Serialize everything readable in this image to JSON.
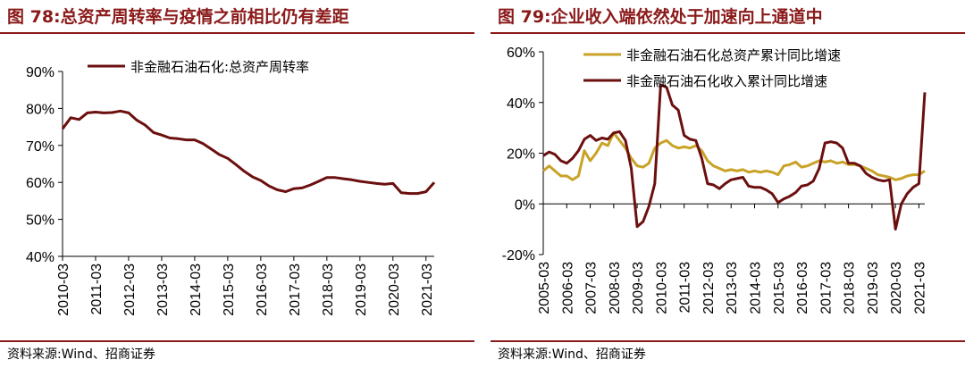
{
  "left_panel": {
    "title": "图 78:总资产周转率与疫情之前相比仍有差距",
    "source": "资料来源:Wind、招商证券"
  },
  "right_panel": {
    "title": "图 79:企业收入端依然处于加速向上通道中",
    "source": "资料来源:Wind、招商证券"
  },
  "chart_data": [
    {
      "type": "line",
      "title": "图 78:总资产周转率与疫情之前相比仍有差距",
      "xlabel": "",
      "ylabel": "",
      "x_ticks": [
        "2010-03",
        "2011-03",
        "2012-03",
        "2013-03",
        "2014-03",
        "2015-03",
        "2016-03",
        "2017-03",
        "2018-03",
        "2019-03",
        "2020-03",
        "2021-03"
      ],
      "y_ticks": [
        "90%",
        "80%",
        "70%",
        "60%",
        "50%",
        "40%"
      ],
      "ylim": [
        40,
        90
      ],
      "grid": false,
      "legend_position": "top-center",
      "colors": {
        "series": "#6b0f0f"
      },
      "series": [
        {
          "name": "非金融石油石化:总资产周转率",
          "points": [
            [
              2010.0,
              74.5
            ],
            [
              2010.25,
              77.5
            ],
            [
              2010.5,
              77.0
            ],
            [
              2010.75,
              78.8
            ],
            [
              2011.0,
              79.0
            ],
            [
              2011.25,
              78.8
            ],
            [
              2011.5,
              78.9
            ],
            [
              2011.75,
              79.3
            ],
            [
              2012.0,
              78.8
            ],
            [
              2012.25,
              76.8
            ],
            [
              2012.5,
              75.5
            ],
            [
              2012.75,
              73.5
            ],
            [
              2013.0,
              72.8
            ],
            [
              2013.25,
              72.0
            ],
            [
              2013.5,
              71.8
            ],
            [
              2013.75,
              71.5
            ],
            [
              2014.0,
              71.5
            ],
            [
              2014.25,
              70.5
            ],
            [
              2014.5,
              69.0
            ],
            [
              2014.75,
              67.5
            ],
            [
              2015.0,
              66.5
            ],
            [
              2015.25,
              64.8
            ],
            [
              2015.5,
              63.0
            ],
            [
              2015.75,
              61.5
            ],
            [
              2016.0,
              60.5
            ],
            [
              2016.25,
              59.0
            ],
            [
              2016.5,
              58.0
            ],
            [
              2016.75,
              57.5
            ],
            [
              2017.0,
              58.3
            ],
            [
              2017.25,
              58.5
            ],
            [
              2017.5,
              59.3
            ],
            [
              2017.75,
              60.3
            ],
            [
              2018.0,
              61.3
            ],
            [
              2018.25,
              61.3
            ],
            [
              2018.5,
              61.0
            ],
            [
              2018.75,
              60.7
            ],
            [
              2019.0,
              60.3
            ],
            [
              2019.25,
              60.0
            ],
            [
              2019.5,
              59.7
            ],
            [
              2019.75,
              59.5
            ],
            [
              2020.0,
              59.7
            ],
            [
              2020.25,
              57.2
            ],
            [
              2020.5,
              57.0
            ],
            [
              2020.75,
              57.0
            ],
            [
              2021.0,
              57.5
            ],
            [
              2021.25,
              60.0
            ]
          ]
        }
      ]
    },
    {
      "type": "line",
      "title": "图 79:企业收入端依然处于加速向上通道中",
      "xlabel": "",
      "ylabel": "",
      "x_ticks": [
        "2005-03",
        "2006-03",
        "2007-03",
        "2008-03",
        "2009-03",
        "2010-03",
        "2011-03",
        "2012-03",
        "2013-03",
        "2014-03",
        "2015-03",
        "2016-03",
        "2017-03",
        "2018-03",
        "2019-03",
        "2020-03",
        "2021-03"
      ],
      "y_ticks": [
        "60%",
        "40%",
        "20%",
        "0%",
        "-20%"
      ],
      "ylim": [
        -20,
        60
      ],
      "grid": false,
      "legend_position": "top-center",
      "colors": {
        "assets": "#c9a227",
        "revenue": "#6b0f0f"
      },
      "series": [
        {
          "name": "非金融石油石化总资产累计同比增速",
          "points": [
            [
              2005.0,
              13
            ],
            [
              2005.25,
              15
            ],
            [
              2005.5,
              13
            ],
            [
              2005.75,
              11
            ],
            [
              2006.0,
              11
            ],
            [
              2006.25,
              9.5
            ],
            [
              2006.5,
              11
            ],
            [
              2006.75,
              21
            ],
            [
              2007.0,
              17
            ],
            [
              2007.25,
              20
            ],
            [
              2007.5,
              24
            ],
            [
              2007.75,
              23
            ],
            [
              2008.0,
              28
            ],
            [
              2008.25,
              25
            ],
            [
              2008.5,
              22
            ],
            [
              2008.75,
              18
            ],
            [
              2009.0,
              15
            ],
            [
              2009.25,
              14.5
            ],
            [
              2009.5,
              16
            ],
            [
              2009.75,
              22
            ],
            [
              2010.0,
              24
            ],
            [
              2010.25,
              25
            ],
            [
              2010.5,
              23
            ],
            [
              2010.75,
              22
            ],
            [
              2011.0,
              22.5
            ],
            [
              2011.25,
              22
            ],
            [
              2011.5,
              23
            ],
            [
              2011.75,
              21
            ],
            [
              2012.0,
              17
            ],
            [
              2012.25,
              15
            ],
            [
              2012.5,
              14
            ],
            [
              2012.75,
              13
            ],
            [
              2013.0,
              13.5
            ],
            [
              2013.25,
              13
            ],
            [
              2013.5,
              13.5
            ],
            [
              2013.75,
              12.5
            ],
            [
              2014.0,
              13
            ],
            [
              2014.25,
              12.5
            ],
            [
              2014.5,
              13
            ],
            [
              2014.75,
              12.5
            ],
            [
              2015.0,
              11.5
            ],
            [
              2015.25,
              15
            ],
            [
              2015.5,
              15.5
            ],
            [
              2015.75,
              16.5
            ],
            [
              2016.0,
              14.5
            ],
            [
              2016.25,
              15
            ],
            [
              2016.5,
              16
            ],
            [
              2016.75,
              17
            ],
            [
              2017.0,
              16.5
            ],
            [
              2017.25,
              17
            ],
            [
              2017.5,
              16
            ],
            [
              2017.75,
              16.5
            ],
            [
              2018.0,
              15.5
            ],
            [
              2018.25,
              15.5
            ],
            [
              2018.5,
              15
            ],
            [
              2018.75,
              14
            ],
            [
              2019.0,
              13
            ],
            [
              2019.25,
              11.5
            ],
            [
              2019.5,
              11
            ],
            [
              2019.75,
              10.5
            ],
            [
              2020.0,
              9.5
            ],
            [
              2020.25,
              10
            ],
            [
              2020.5,
              11
            ],
            [
              2020.75,
              11.5
            ],
            [
              2021.0,
              11.5
            ],
            [
              2021.25,
              13
            ]
          ]
        },
        {
          "name": "非金融石油石化收入累计同比增速",
          "points": [
            [
              2005.0,
              19
            ],
            [
              2005.25,
              20.5
            ],
            [
              2005.5,
              19.5
            ],
            [
              2005.75,
              17
            ],
            [
              2006.0,
              16
            ],
            [
              2006.25,
              18
            ],
            [
              2006.5,
              21
            ],
            [
              2006.75,
              25.5
            ],
            [
              2007.0,
              27
            ],
            [
              2007.25,
              25
            ],
            [
              2007.5,
              26
            ],
            [
              2007.75,
              25.5
            ],
            [
              2008.0,
              28
            ],
            [
              2008.25,
              28.5
            ],
            [
              2008.5,
              25
            ],
            [
              2008.75,
              14
            ],
            [
              2009.0,
              -9
            ],
            [
              2009.25,
              -7
            ],
            [
              2009.5,
              -1
            ],
            [
              2009.75,
              8
            ],
            [
              2010.0,
              47
            ],
            [
              2010.25,
              46
            ],
            [
              2010.5,
              39
            ],
            [
              2010.75,
              37
            ],
            [
              2011.0,
              27
            ],
            [
              2011.25,
              25.5
            ],
            [
              2011.5,
              25
            ],
            [
              2011.75,
              18
            ],
            [
              2012.0,
              8
            ],
            [
              2012.25,
              7.5
            ],
            [
              2012.5,
              6
            ],
            [
              2012.75,
              8
            ],
            [
              2013.0,
              9.5
            ],
            [
              2013.25,
              10
            ],
            [
              2013.5,
              10.5
            ],
            [
              2013.75,
              7
            ],
            [
              2014.0,
              6.5
            ],
            [
              2014.25,
              6.5
            ],
            [
              2014.5,
              5.5
            ],
            [
              2014.75,
              4
            ],
            [
              2015.0,
              0.5
            ],
            [
              2015.25,
              2
            ],
            [
              2015.5,
              3
            ],
            [
              2015.75,
              4.5
            ],
            [
              2016.0,
              7
            ],
            [
              2016.25,
              7.5
            ],
            [
              2016.5,
              9
            ],
            [
              2016.75,
              14
            ],
            [
              2017.0,
              24
            ],
            [
              2017.25,
              24.5
            ],
            [
              2017.5,
              24
            ],
            [
              2017.75,
              22
            ],
            [
              2018.0,
              16
            ],
            [
              2018.25,
              16
            ],
            [
              2018.5,
              15
            ],
            [
              2018.75,
              12
            ],
            [
              2019.0,
              10.5
            ],
            [
              2019.25,
              9.5
            ],
            [
              2019.5,
              9
            ],
            [
              2019.75,
              9.5
            ],
            [
              2020.0,
              -10
            ],
            [
              2020.25,
              0
            ],
            [
              2020.5,
              4
            ],
            [
              2020.75,
              6.5
            ],
            [
              2021.0,
              8
            ],
            [
              2021.25,
              44
            ]
          ]
        }
      ]
    }
  ]
}
